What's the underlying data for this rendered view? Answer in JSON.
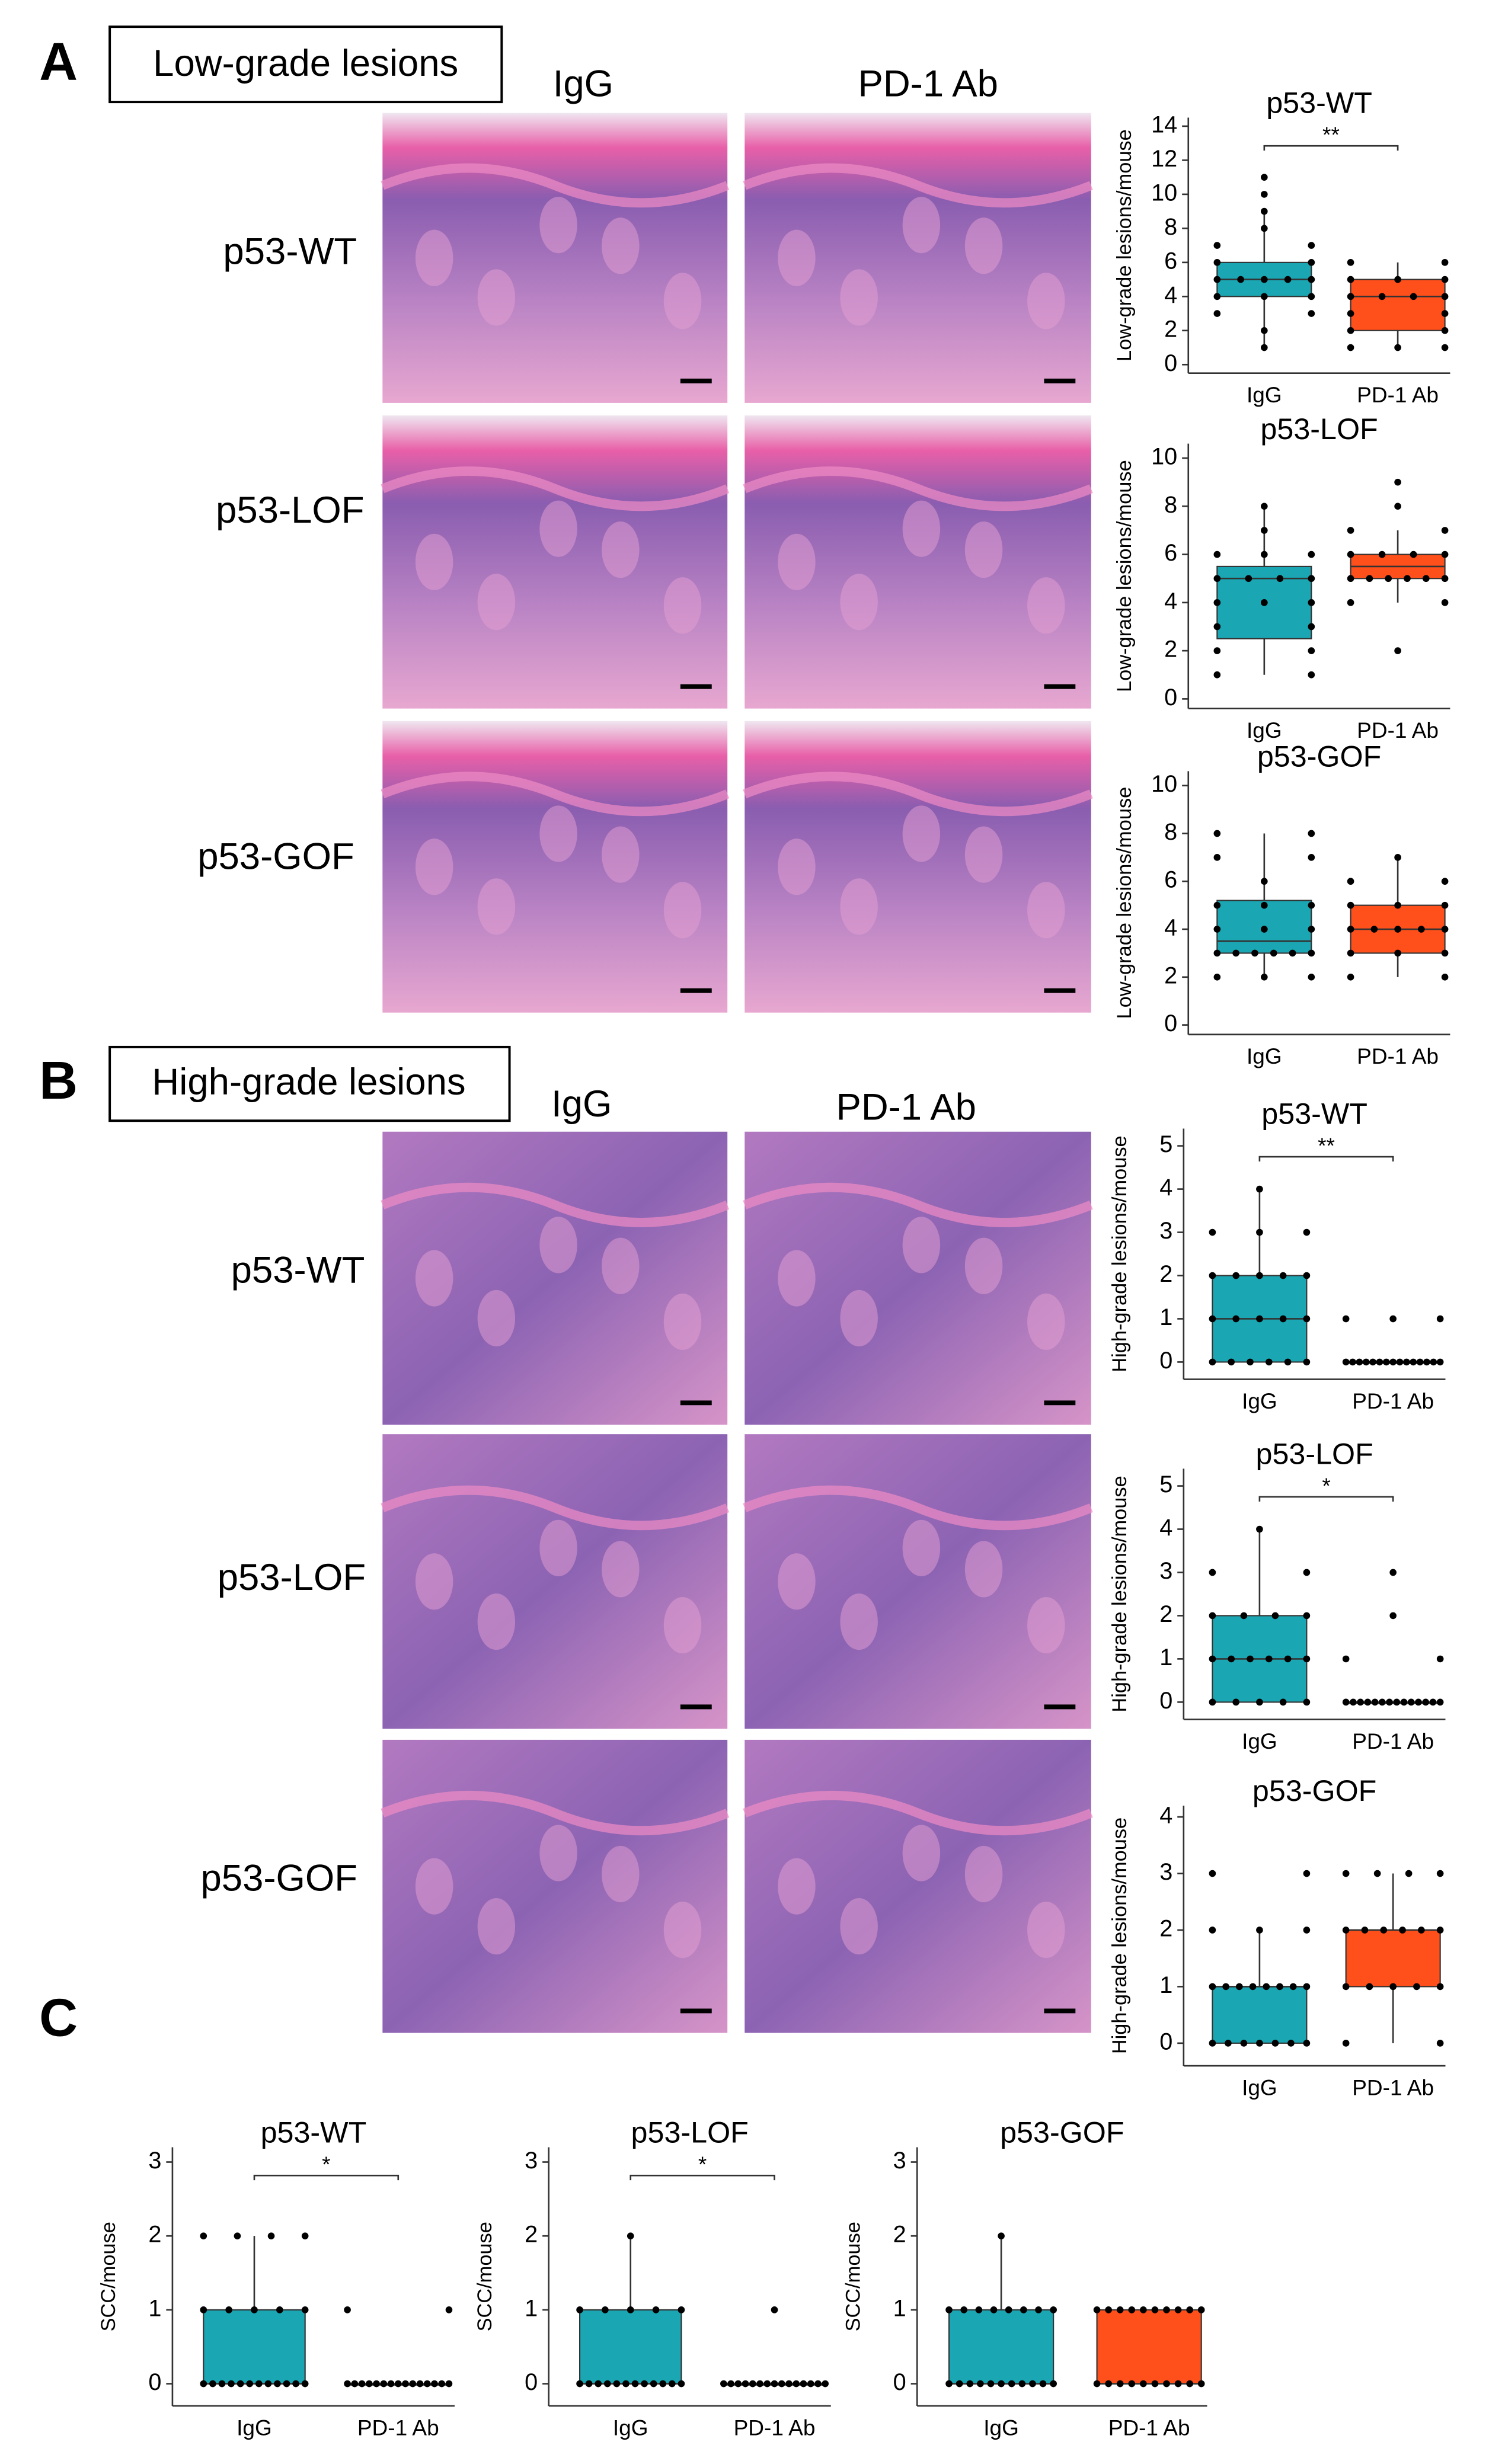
{
  "panels": [
    {
      "letter": "A",
      "title": "Low-grade lesions",
      "columns": [
        "IgG",
        "PD-1 Ab"
      ],
      "rows": [
        "p53-WT",
        "p53-LOF",
        "p53-GOF"
      ]
    },
    {
      "letter": "B",
      "title": "High-grade lesions",
      "columns": [
        "IgG",
        "PD-1 Ab"
      ],
      "rows": [
        "p53-WT",
        "p53-LOF",
        "p53-GOF"
      ]
    },
    {
      "letter": "C"
    }
  ],
  "chart_data": [
    {
      "type": "box",
      "title": "p53-WT",
      "ylabel": "Low-grade lesions/mouse",
      "categories": [
        "IgG",
        "PD-1 Ab"
      ],
      "ylim": [
        -0.5,
        14.5
      ],
      "yticks": [
        0,
        2,
        4,
        6,
        8,
        10,
        12,
        14
      ],
      "annotation": "**",
      "boxes": [
        {
          "color": "#1aa7b3",
          "lo": 1,
          "q1": 4,
          "median": 5,
          "q3": 6,
          "hi": 9,
          "points": [
            1,
            2,
            3,
            3,
            4,
            4,
            4,
            5,
            5,
            5,
            5,
            5,
            6,
            6,
            7,
            7,
            8,
            9,
            10,
            11
          ]
        },
        {
          "color": "#ff4f1a",
          "lo": 1,
          "q1": 2,
          "median": 4,
          "q3": 5,
          "hi": 6,
          "points": [
            1,
            1,
            1,
            2,
            2,
            3,
            3,
            4,
            4,
            4,
            4,
            5,
            5,
            5,
            6,
            6
          ]
        }
      ]
    },
    {
      "type": "box",
      "title": "p53-LOF",
      "ylabel": "Low-grade lesions/mouse",
      "categories": [
        "IgG",
        "PD-1 Ab"
      ],
      "ylim": [
        -0.4,
        10.6
      ],
      "yticks": [
        0,
        2,
        4,
        6,
        8,
        10
      ],
      "boxes": [
        {
          "color": "#1aa7b3",
          "lo": 1,
          "q1": 2.5,
          "median": 5,
          "q3": 5.5,
          "hi": 8,
          "points": [
            1,
            1,
            2,
            2,
            3,
            3,
            4,
            4,
            4,
            5,
            5,
            5,
            5,
            6,
            6,
            6,
            7,
            8
          ]
        },
        {
          "color": "#ff4f1a",
          "lo": 4,
          "q1": 5,
          "median": 5.5,
          "q3": 6,
          "hi": 7,
          "points": [
            2,
            4,
            4,
            5,
            5,
            5,
            5,
            5,
            5,
            6,
            6,
            6,
            6,
            7,
            7,
            8,
            9
          ]
        }
      ]
    },
    {
      "type": "box",
      "title": "p53-GOF",
      "ylabel": "Low-grade lesions/mouse",
      "categories": [
        "IgG",
        "PD-1 Ab"
      ],
      "ylim": [
        -0.4,
        10.6
      ],
      "yticks": [
        0,
        2,
        4,
        6,
        8,
        10
      ],
      "boxes": [
        {
          "color": "#1aa7b3",
          "lo": 2,
          "q1": 3,
          "median": 3.5,
          "q3": 5.2,
          "hi": 8,
          "points": [
            2,
            2,
            2,
            3,
            3,
            3,
            3,
            3,
            3,
            4,
            4,
            4,
            5,
            5,
            5,
            6,
            7,
            7,
            8,
            8
          ]
        },
        {
          "color": "#ff4f1a",
          "lo": 2,
          "q1": 3,
          "median": 4,
          "q3": 5,
          "hi": 7,
          "points": [
            2,
            2,
            3,
            3,
            3,
            4,
            4,
            4,
            4,
            4,
            5,
            5,
            5,
            6,
            6,
            7
          ]
        }
      ]
    },
    {
      "type": "box",
      "title": "p53-WT",
      "ylabel": "High-grade lesions/mouse",
      "categories": [
        "IgG",
        "PD-1 Ab"
      ],
      "ylim": [
        -0.4,
        5.4
      ],
      "yticks": [
        0,
        1,
        2,
        3,
        4,
        5
      ],
      "annotation": "**",
      "boxes": [
        {
          "color": "#1aa7b3",
          "lo": 0,
          "q1": 0,
          "median": 1,
          "q3": 2,
          "hi": 4,
          "points": [
            0,
            0,
            0,
            0,
            0,
            0,
            1,
            1,
            1,
            1,
            1,
            2,
            2,
            2,
            2,
            2,
            3,
            3,
            3,
            4
          ]
        },
        {
          "color": "#ff4f1a",
          "lo": 0,
          "q1": 0,
          "median": 0,
          "q3": 0,
          "hi": 0,
          "points": [
            0,
            0,
            0,
            0,
            0,
            0,
            0,
            0,
            0,
            0,
            0,
            0,
            0,
            0,
            0,
            1,
            1,
            1
          ]
        }
      ]
    },
    {
      "type": "box",
      "title": "p53-LOF",
      "ylabel": "High-grade lesions/mouse",
      "categories": [
        "IgG",
        "PD-1 Ab"
      ],
      "ylim": [
        -0.4,
        5.4
      ],
      "yticks": [
        0,
        1,
        2,
        3,
        4,
        5
      ],
      "annotation": "*",
      "boxes": [
        {
          "color": "#1aa7b3",
          "lo": 0,
          "q1": 0,
          "median": 1,
          "q3": 2,
          "hi": 4,
          "points": [
            0,
            0,
            0,
            0,
            0,
            1,
            1,
            1,
            1,
            1,
            1,
            2,
            2,
            2,
            2,
            3,
            3,
            4
          ]
        },
        {
          "color": "#ff4f1a",
          "lo": 0,
          "q1": 0,
          "median": 0,
          "q3": 0,
          "hi": 0,
          "points": [
            0,
            0,
            0,
            0,
            0,
            0,
            0,
            0,
            0,
            0,
            0,
            0,
            0,
            0,
            1,
            1,
            2,
            3
          ]
        }
      ]
    },
    {
      "type": "box",
      "title": "p53-GOF",
      "ylabel": "High-grade lesions/mouse",
      "categories": [
        "IgG",
        "PD-1 Ab"
      ],
      "ylim": [
        -0.4,
        4.2
      ],
      "yticks": [
        0,
        1,
        2,
        3,
        4
      ],
      "boxes": [
        {
          "color": "#1aa7b3",
          "lo": 0,
          "q1": 0,
          "median": 1,
          "q3": 1,
          "hi": 2,
          "points": [
            0,
            0,
            0,
            0,
            0,
            0,
            0,
            1,
            1,
            1,
            1,
            1,
            1,
            1,
            1,
            2,
            2,
            2,
            3,
            3
          ]
        },
        {
          "color": "#ff4f1a",
          "lo": 0,
          "q1": 1,
          "median": 2,
          "q3": 2,
          "hi": 3,
          "points": [
            0,
            0,
            1,
            1,
            1,
            1,
            1,
            2,
            2,
            2,
            2,
            2,
            2,
            3,
            3,
            3,
            3
          ]
        }
      ]
    },
    {
      "type": "box",
      "title": "p53-WT",
      "ylabel": "SCC/mouse",
      "categories": [
        "IgG",
        "PD-1 Ab"
      ],
      "ylim": [
        -0.3,
        3.2
      ],
      "yticks": [
        0,
        1,
        2,
        3
      ],
      "annotation": "*",
      "boxes": [
        {
          "color": "#1aa7b3",
          "lo": 0,
          "q1": 0,
          "median": 0,
          "q3": 1,
          "hi": 2,
          "points": [
            0,
            0,
            0,
            0,
            0,
            0,
            0,
            0,
            0,
            0,
            0,
            0,
            1,
            1,
            1,
            1,
            1,
            2,
            2,
            2,
            2
          ]
        },
        {
          "color": "#ff4f1a",
          "lo": 0,
          "q1": 0,
          "median": 0,
          "q3": 0,
          "hi": 0,
          "points": [
            0,
            0,
            0,
            0,
            0,
            0,
            0,
            0,
            0,
            0,
            0,
            0,
            0,
            0,
            0,
            1,
            1
          ]
        }
      ]
    },
    {
      "type": "box",
      "title": "p53-LOF",
      "ylabel": "SCC/mouse",
      "categories": [
        "IgG",
        "PD-1 Ab"
      ],
      "ylim": [
        -0.3,
        3.2
      ],
      "yticks": [
        0,
        1,
        2,
        3
      ],
      "annotation": "*",
      "boxes": [
        {
          "color": "#1aa7b3",
          "lo": 0,
          "q1": 0,
          "median": 0,
          "q3": 1,
          "hi": 2,
          "points": [
            0,
            0,
            0,
            0,
            0,
            0,
            0,
            0,
            0,
            0,
            0,
            0,
            1,
            1,
            1,
            1,
            1,
            2
          ]
        },
        {
          "color": "#ff4f1a",
          "lo": 0,
          "q1": 0,
          "median": 0,
          "q3": 0,
          "hi": 0,
          "points": [
            0,
            0,
            0,
            0,
            0,
            0,
            0,
            0,
            0,
            0,
            0,
            0,
            0,
            0,
            0,
            1
          ]
        }
      ]
    },
    {
      "type": "box",
      "title": "p53-GOF",
      "ylabel": "SCC/mouse",
      "categories": [
        "IgG",
        "PD-1 Ab"
      ],
      "ylim": [
        -0.3,
        3.2
      ],
      "yticks": [
        0,
        1,
        2,
        3
      ],
      "boxes": [
        {
          "color": "#1aa7b3",
          "lo": 0,
          "q1": 0,
          "median": 0,
          "q3": 1,
          "hi": 2,
          "points": [
            0,
            0,
            0,
            0,
            0,
            0,
            0,
            0,
            0,
            0,
            0,
            1,
            1,
            1,
            1,
            1,
            1,
            1,
            1,
            2
          ]
        },
        {
          "color": "#ff4f1a",
          "lo": 0,
          "q1": 0,
          "median": 0,
          "q3": 1,
          "hi": 1,
          "points": [
            0,
            0,
            0,
            0,
            0,
            0,
            0,
            0,
            0,
            0,
            1,
            1,
            1,
            1,
            1,
            1,
            1,
            1,
            1,
            1
          ]
        }
      ]
    }
  ]
}
